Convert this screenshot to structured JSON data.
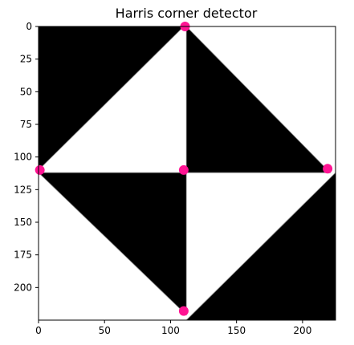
{
  "chart_data": {
    "type": "image",
    "title": "Harris corner detector",
    "image": {
      "width": 225,
      "height": 225,
      "background": "#ffffff",
      "foreground": "#000000",
      "black_regions": [
        [
          [
            0,
            0
          ],
          [
            110,
            0
          ],
          [
            0,
            110
          ]
        ],
        [
          [
            112,
            0
          ],
          [
            112,
            112
          ],
          [
            221,
            112
          ]
        ],
        [
          [
            0,
            112
          ],
          [
            112,
            112
          ],
          [
            112,
            221
          ]
        ],
        [
          [
            112,
            225
          ],
          [
            225,
            225
          ],
          [
            225,
            112
          ]
        ]
      ]
    },
    "xticks": [
      0,
      50,
      100,
      150,
      200
    ],
    "yticks": [
      0,
      25,
      50,
      75,
      100,
      125,
      150,
      175,
      200
    ],
    "xlim": [
      0,
      225
    ],
    "ylim": [
      225,
      0
    ],
    "corners": {
      "marker_color": "#ff1493",
      "points": [
        [
          111,
          0
        ],
        [
          1,
          110
        ],
        [
          110,
          110
        ],
        [
          219,
          109
        ],
        [
          110,
          218
        ]
      ]
    }
  }
}
